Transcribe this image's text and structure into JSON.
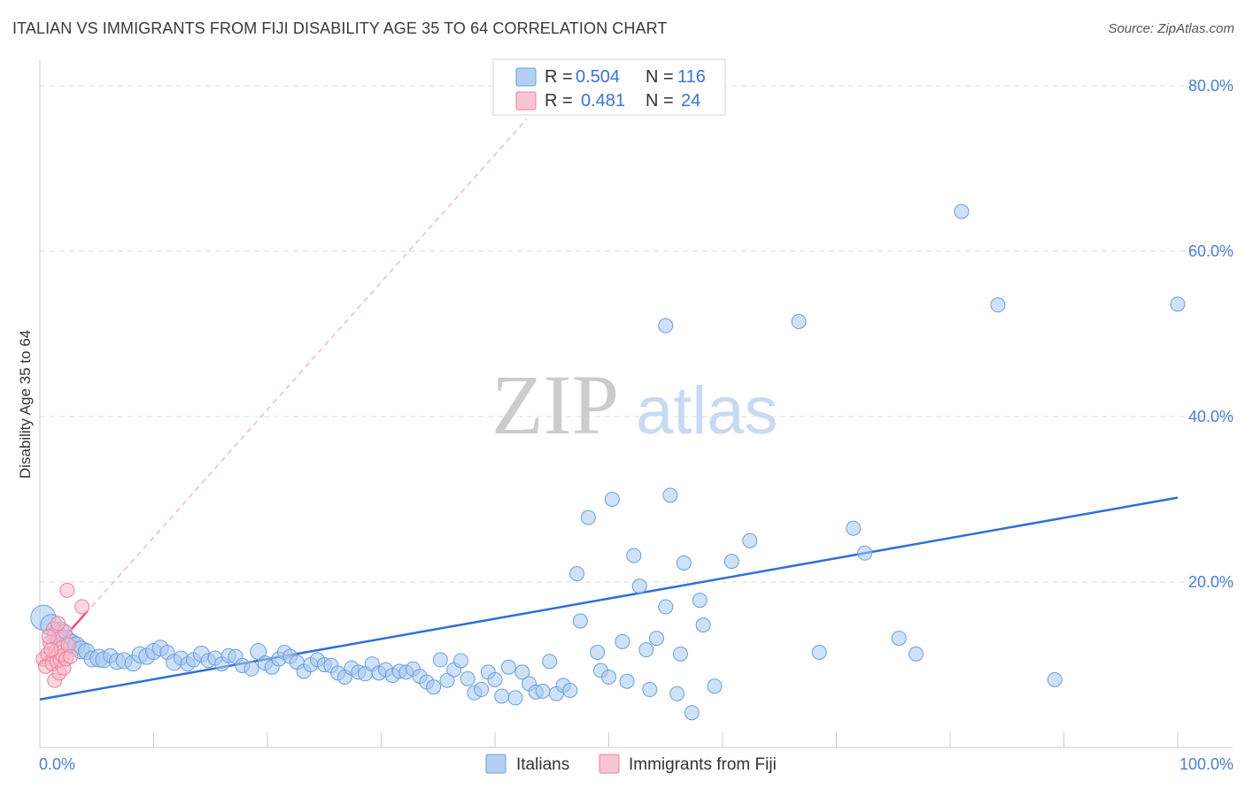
{
  "title": "ITALIAN VS IMMIGRANTS FROM FIJI DISABILITY AGE 35 TO 64 CORRELATION CHART",
  "source": "Source: ZipAtlas.com",
  "watermark": {
    "zip": "ZIP",
    "atlas": "atlas"
  },
  "colors": {
    "italians_fill": "#a8c8f0",
    "italians_stroke": "#6a9ee0",
    "italians_line": "#2f6fd6",
    "fiji_fill": "#f7b6c8",
    "fiji_stroke": "#ee7fa0",
    "fiji_line": "#e8507f",
    "grid": "#dddddd",
    "tick_text": "#4a7fd0"
  },
  "legend": {
    "rows": [
      {
        "r_label": "R =",
        "r_value": "0.504",
        "n_label": "N =",
        "n_value": "116"
      },
      {
        "r_label": "R =",
        "r_value": "0.481",
        "n_label": "N =",
        "n_value": "24"
      }
    ]
  },
  "bottom_legend": {
    "italians": "Italians",
    "fiji": "Immigrants from Fiji"
  },
  "chart_data": {
    "type": "scatter",
    "title": "ITALIAN VS IMMIGRANTS FROM FIJI DISABILITY AGE 35 TO 64 CORRELATION CHART",
    "xlabel": "",
    "ylabel": "Disability Age 35 to 64",
    "xlim": [
      0,
      100
    ],
    "ylim": [
      0,
      80
    ],
    "x_tick_labels": [
      "0.0%",
      "100.0%"
    ],
    "y_ticks": [
      20,
      40,
      60,
      80
    ],
    "y_tick_labels": [
      "20.0%",
      "40.0%",
      "60.0%",
      "80.0%"
    ],
    "grid": true,
    "series": [
      {
        "name": "Italians",
        "R": 0.504,
        "N": 116,
        "trend": {
          "x": [
            0,
            100
          ],
          "y": [
            5.8,
            30.2
          ]
        },
        "points": [
          [
            0.3,
            15.7,
            14
          ],
          [
            1.0,
            14.8,
            12
          ],
          [
            1.5,
            13.5,
            11
          ],
          [
            1.8,
            14.1,
            10
          ],
          [
            2.2,
            12.8,
            13
          ],
          [
            2.8,
            12.6,
            10
          ],
          [
            3.2,
            12.3,
            10
          ],
          [
            3.6,
            11.8,
            10
          ],
          [
            4.1,
            11.6,
            9
          ],
          [
            4.6,
            10.7,
            9
          ],
          [
            5.2,
            10.8,
            10
          ],
          [
            5.6,
            10.6,
            9
          ],
          [
            6.2,
            11.1,
            8
          ],
          [
            6.8,
            10.4,
            9
          ],
          [
            7.4,
            10.5,
            9
          ],
          [
            8.2,
            10.2,
            9
          ],
          [
            8.8,
            11.2,
            9
          ],
          [
            9.4,
            11.0,
            9
          ],
          [
            10.0,
            11.6,
            9
          ],
          [
            10.6,
            12.0,
            9
          ],
          [
            11.2,
            11.5,
            8
          ],
          [
            11.8,
            10.3,
            9
          ],
          [
            12.4,
            10.8,
            8
          ],
          [
            13.0,
            10.1,
            8
          ],
          [
            13.5,
            10.6,
            8
          ],
          [
            14.2,
            11.3,
            9
          ],
          [
            14.8,
            10.5,
            8
          ],
          [
            15.4,
            10.8,
            8
          ],
          [
            16.0,
            10.1,
            8
          ],
          [
            16.6,
            11.1,
            8
          ],
          [
            17.2,
            11.0,
            8
          ],
          [
            17.8,
            9.9,
            8
          ],
          [
            18.6,
            9.5,
            8
          ],
          [
            19.2,
            11.6,
            9
          ],
          [
            19.8,
            10.2,
            8
          ],
          [
            20.4,
            9.7,
            8
          ],
          [
            21.0,
            10.7,
            8
          ],
          [
            21.5,
            11.5,
            8
          ],
          [
            22.0,
            11.0,
            8
          ],
          [
            22.6,
            10.3,
            8
          ],
          [
            23.2,
            9.2,
            8
          ],
          [
            23.8,
            10.0,
            8
          ],
          [
            24.4,
            10.6,
            8
          ],
          [
            25.0,
            10.0,
            8
          ],
          [
            25.6,
            9.9,
            8
          ],
          [
            26.2,
            9.0,
            8
          ],
          [
            26.8,
            8.5,
            8
          ],
          [
            27.4,
            9.6,
            8
          ],
          [
            28.0,
            9.1,
            8
          ],
          [
            28.6,
            8.9,
            8
          ],
          [
            29.2,
            10.1,
            8
          ],
          [
            29.8,
            9.0,
            8
          ],
          [
            30.4,
            9.4,
            8
          ],
          [
            31.0,
            8.7,
            8
          ],
          [
            31.6,
            9.2,
            8
          ],
          [
            32.2,
            9.1,
            8
          ],
          [
            32.8,
            9.5,
            8
          ],
          [
            33.4,
            8.6,
            8
          ],
          [
            34.0,
            7.9,
            8
          ],
          [
            34.6,
            7.3,
            8
          ],
          [
            35.2,
            10.6,
            8
          ],
          [
            35.8,
            8.1,
            8
          ],
          [
            36.4,
            9.4,
            8
          ],
          [
            37.0,
            10.5,
            8
          ],
          [
            37.6,
            8.3,
            8
          ],
          [
            38.2,
            6.6,
            8
          ],
          [
            38.8,
            7.0,
            8
          ],
          [
            39.4,
            9.1,
            8
          ],
          [
            40.0,
            8.2,
            8
          ],
          [
            40.6,
            6.2,
            8
          ],
          [
            41.2,
            9.7,
            8
          ],
          [
            41.8,
            6.0,
            8
          ],
          [
            42.4,
            9.1,
            8
          ],
          [
            43.0,
            7.7,
            8
          ],
          [
            43.6,
            6.7,
            8
          ],
          [
            44.2,
            6.8,
            8
          ],
          [
            44.8,
            10.4,
            8
          ],
          [
            45.4,
            6.5,
            8
          ],
          [
            46.0,
            7.5,
            8
          ],
          [
            46.6,
            6.9,
            8
          ],
          [
            47.2,
            21.0,
            8
          ],
          [
            47.5,
            15.3,
            8
          ],
          [
            48.2,
            27.8,
            8
          ],
          [
            49.0,
            11.5,
            8
          ],
          [
            49.3,
            9.3,
            8
          ],
          [
            50.0,
            8.5,
            8
          ],
          [
            50.3,
            30.0,
            8
          ],
          [
            51.2,
            12.8,
            8
          ],
          [
            51.6,
            8.0,
            8
          ],
          [
            52.2,
            23.2,
            8
          ],
          [
            52.7,
            19.5,
            8
          ],
          [
            53.3,
            11.8,
            8
          ],
          [
            53.6,
            7.0,
            8
          ],
          [
            54.2,
            13.2,
            8
          ],
          [
            55.0,
            17.0,
            8
          ],
          [
            56.0,
            6.5,
            8
          ],
          [
            56.3,
            11.3,
            8
          ],
          [
            56.6,
            22.3,
            8
          ],
          [
            57.3,
            4.2,
            8
          ],
          [
            58.0,
            17.8,
            8
          ],
          [
            58.3,
            14.8,
            8
          ],
          [
            59.3,
            7.4,
            8
          ],
          [
            55.0,
            51.0,
            8
          ],
          [
            55.4,
            30.5,
            8
          ],
          [
            60.8,
            22.5,
            8
          ],
          [
            62.4,
            25.0,
            8
          ],
          [
            66.7,
            51.5,
            8
          ],
          [
            68.5,
            11.5,
            8
          ],
          [
            71.5,
            26.5,
            8
          ],
          [
            72.5,
            23.5,
            8
          ],
          [
            75.5,
            13.2,
            8
          ],
          [
            77.0,
            11.3,
            8
          ],
          [
            81.0,
            64.8,
            8
          ],
          [
            84.2,
            53.5,
            8
          ],
          [
            89.2,
            8.2,
            8
          ],
          [
            100.0,
            53.6,
            8
          ]
        ]
      },
      {
        "name": "Immigrants from Fiji",
        "R": 0.481,
        "N": 24,
        "trend": {
          "x": [
            0,
            4.2
          ],
          "y": [
            10.0,
            16.5
          ]
        },
        "trend_extended": {
          "x": [
            0,
            42.8
          ],
          "y": [
            10.0,
            76.0
          ]
        },
        "points": [
          [
            0.3,
            10.7,
            8
          ],
          [
            0.5,
            9.8,
            8
          ],
          [
            0.7,
            11.3,
            8
          ],
          [
            0.9,
            12.7,
            8
          ],
          [
            1.1,
            10.1,
            8
          ],
          [
            1.2,
            14.3,
            8
          ],
          [
            1.3,
            8.1,
            8
          ],
          [
            1.4,
            11.6,
            8
          ],
          [
            1.5,
            10.4,
            8
          ],
          [
            1.6,
            13.1,
            8
          ],
          [
            1.7,
            9.0,
            8
          ],
          [
            1.8,
            10.6,
            8
          ],
          [
            1.9,
            12.0,
            8
          ],
          [
            2.0,
            11.1,
            8
          ],
          [
            2.1,
            9.6,
            8
          ],
          [
            2.2,
            14.0,
            8
          ],
          [
            2.3,
            10.7,
            8
          ],
          [
            2.4,
            19.0,
            8
          ],
          [
            2.5,
            12.4,
            8
          ],
          [
            2.7,
            11.0,
            8
          ],
          [
            0.8,
            13.4,
            8
          ],
          [
            1.0,
            11.8,
            8
          ],
          [
            1.6,
            15.0,
            8
          ],
          [
            3.7,
            17.0,
            8
          ]
        ]
      }
    ]
  }
}
